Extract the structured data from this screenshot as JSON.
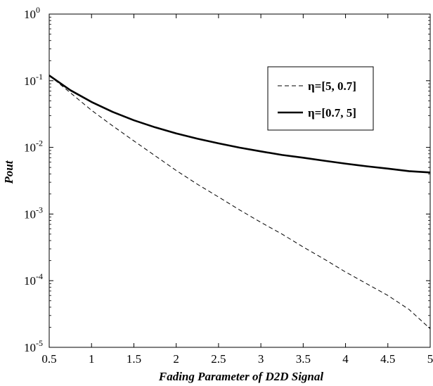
{
  "chart_data": {
    "type": "line",
    "title": "",
    "xlabel": "Fading Parameter of D2D Signal",
    "ylabel": "Pout",
    "xlim": [
      0.5,
      5
    ],
    "ylim": [
      1e-05,
      1
    ],
    "yscale": "log",
    "grid": false,
    "legend_position": "top-right",
    "x_ticks": [
      "0.5",
      "1",
      "1.5",
      "2",
      "2.5",
      "3",
      "3.5",
      "4",
      "4.5",
      "5"
    ],
    "y_ticks": [
      {
        "base": "10",
        "exp": "-5"
      },
      {
        "base": "10",
        "exp": "-4"
      },
      {
        "base": "10",
        "exp": "-3"
      },
      {
        "base": "10",
        "exp": "-2"
      },
      {
        "base": "10",
        "exp": "-1"
      },
      {
        "base": "10",
        "exp": "0"
      }
    ],
    "series": [
      {
        "name": "η=[5, 0.7]",
        "style": "dashed",
        "color": "#000000",
        "x": [
          0.5,
          0.75,
          1.0,
          1.25,
          1.5,
          1.75,
          2.0,
          2.25,
          2.5,
          2.75,
          3.0,
          3.25,
          3.5,
          3.75,
          4.0,
          4.25,
          4.5,
          4.75,
          5.0
        ],
        "y": [
          0.12,
          0.066,
          0.036,
          0.021,
          0.0125,
          0.0075,
          0.0045,
          0.0028,
          0.0018,
          0.00115,
          0.00075,
          0.0005,
          0.00032,
          0.00021,
          0.000135,
          9e-05,
          6e-05,
          3.7e-05,
          1.9e-05
        ]
      },
      {
        "name": "η=[0.7, 5]",
        "style": "solid",
        "color": "#000000",
        "x": [
          0.5,
          0.75,
          1.0,
          1.25,
          1.5,
          1.75,
          2.0,
          2.25,
          2.5,
          2.75,
          3.0,
          3.25,
          3.5,
          3.75,
          4.0,
          4.25,
          4.5,
          4.75,
          5.0
        ],
        "y": [
          0.12,
          0.072,
          0.048,
          0.034,
          0.0255,
          0.02,
          0.0162,
          0.0135,
          0.0115,
          0.0099,
          0.0087,
          0.0077,
          0.007,
          0.0063,
          0.0057,
          0.0052,
          0.0048,
          0.0044,
          0.0042
        ]
      }
    ]
  }
}
